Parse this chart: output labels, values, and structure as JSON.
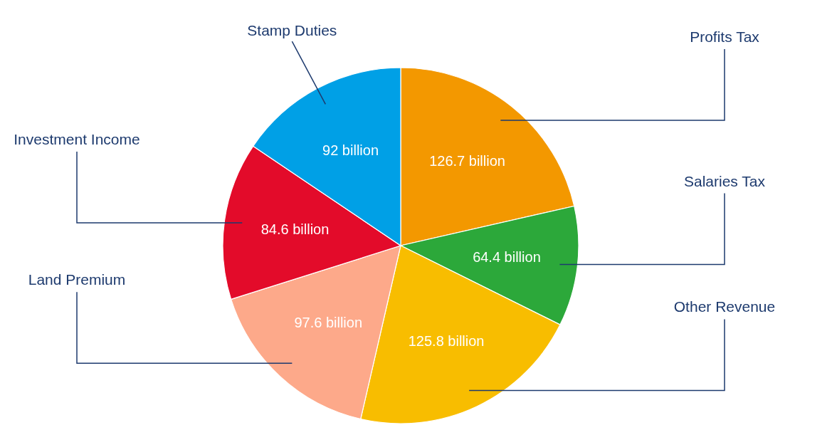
{
  "chart_data": {
    "type": "pie",
    "categories": [
      "Profits Tax",
      "Salaries Tax",
      "Other Revenue",
      "Land Premium",
      "Investment Income",
      "Stamp Duties"
    ],
    "values": [
      126.7,
      64.4,
      125.8,
      97.6,
      84.6,
      92
    ],
    "colors": [
      "#f39800",
      "#2ca83a",
      "#f8bd00",
      "#fda98a",
      "#e30b2a",
      "#00a0e6"
    ],
    "value_labels": [
      "126.7 billion",
      "64.4 billion",
      "125.8 billion",
      "97.6 billion",
      "84.6 billion",
      "92 billion"
    ]
  }
}
